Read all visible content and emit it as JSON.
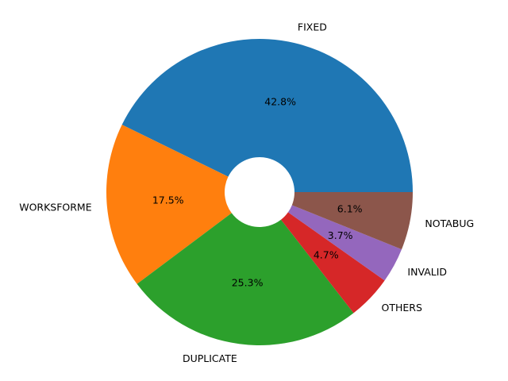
{
  "chart_data": {
    "type": "donut",
    "categories": [
      "FIXED",
      "WORKSFORME",
      "DUPLICATE",
      "OTHERS",
      "INVALID",
      "NOTABUG"
    ],
    "values": [
      42.8,
      17.5,
      25.3,
      4.7,
      3.7,
      6.1
    ],
    "value_labels": [
      "42.8%",
      "17.5%",
      "25.3%",
      "4.7%",
      "3.7%",
      "6.1%"
    ],
    "colors": [
      "#1f77b4",
      "#ff7f0e",
      "#2ca02c",
      "#d62728",
      "#9467bd",
      "#8c564b"
    ]
  }
}
